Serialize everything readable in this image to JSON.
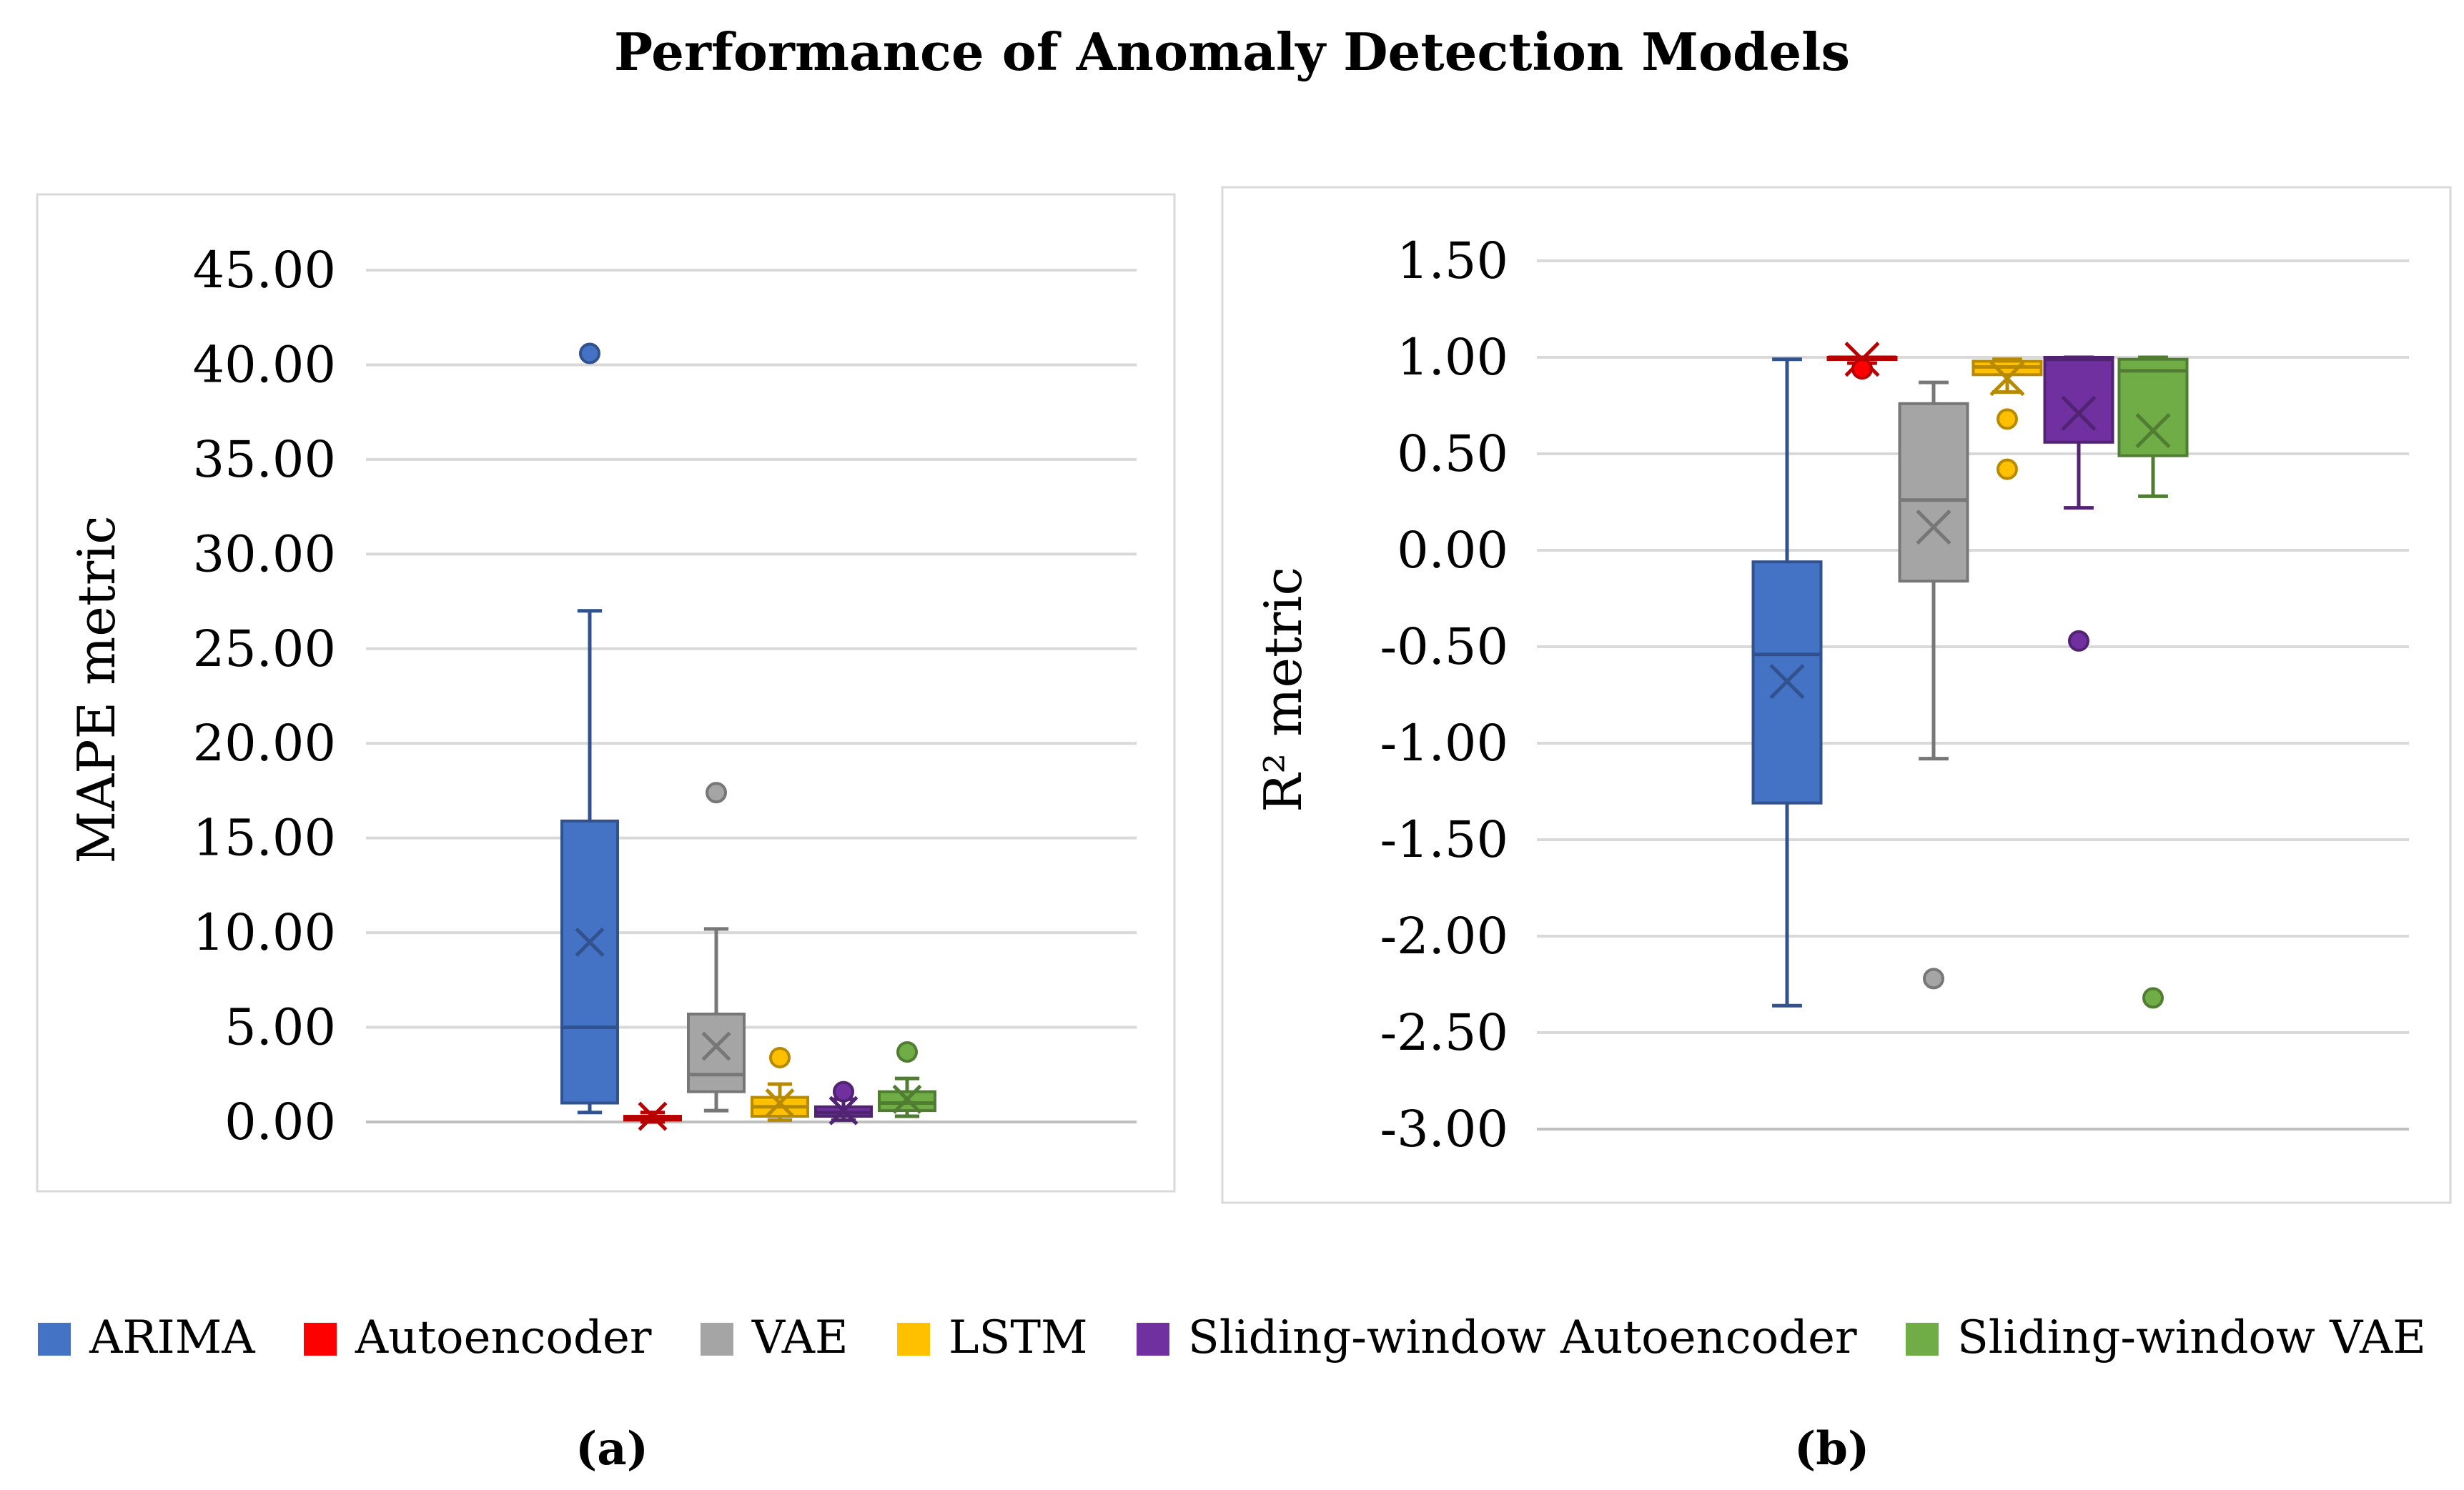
{
  "title": "Performance of Anomaly Detection Models",
  "colors": {
    "ARIMA": "#4472c4",
    "Autoencoder": "#ff0000",
    "VAE": "#a5a5a5",
    "LSTM": "#ffc000",
    "Sliding-window Autoencoder": "#7030a0",
    "Sliding-window VAE": "#70ad47"
  },
  "legend": [
    {
      "name": "ARIMA",
      "color": "#4472c4"
    },
    {
      "name": "Autoencoder",
      "color": "#ff0000"
    },
    {
      "name": "VAE",
      "color": "#a5a5a5"
    },
    {
      "name": "LSTM",
      "color": "#ffc000"
    },
    {
      "name": "Sliding-window Autoencoder",
      "color": "#7030a0"
    },
    {
      "name": "Sliding-window VAE",
      "color": "#70ad47"
    }
  ],
  "sublabels": {
    "a": "(a)",
    "b": "(b)"
  },
  "chart_data": [
    {
      "type": "box",
      "panel": "(a)",
      "title": "",
      "ylabel": "MAPE  metric",
      "ylim": [
        0,
        45
      ],
      "yticks": [
        "0.00",
        "5.00",
        "10.00",
        "15.00",
        "20.00",
        "25.00",
        "30.00",
        "35.00",
        "40.00",
        "45.00"
      ],
      "grid": true,
      "series": [
        {
          "name": "ARIMA",
          "min": 0.5,
          "q1": 1.0,
          "median": 5.0,
          "q3": 15.9,
          "max": 27.0,
          "mean": 9.5,
          "outliers": [
            40.6
          ]
        },
        {
          "name": "Autoencoder",
          "min": 0.0,
          "q1": 0.1,
          "median": 0.2,
          "q3": 0.3,
          "max": 0.5,
          "mean": 0.3,
          "outliers": []
        },
        {
          "name": "VAE",
          "min": 0.6,
          "q1": 1.6,
          "median": 2.5,
          "q3": 5.7,
          "max": 10.2,
          "mean": 4.0,
          "outliers": [
            17.4
          ]
        },
        {
          "name": "LSTM",
          "min": 0.1,
          "q1": 0.3,
          "median": 0.8,
          "q3": 1.3,
          "max": 2.0,
          "mean": 1.0,
          "outliers": [
            3.4
          ]
        },
        {
          "name": "Sliding-window Autoencoder",
          "min": 0.1,
          "q1": 0.3,
          "median": 0.5,
          "q3": 0.8,
          "max": 1.2,
          "mean": 0.6,
          "outliers": [
            1.6
          ]
        },
        {
          "name": "Sliding-window VAE",
          "min": 0.3,
          "q1": 0.6,
          "median": 1.0,
          "q3": 1.6,
          "max": 2.3,
          "mean": 1.2,
          "outliers": [
            3.7
          ]
        }
      ]
    },
    {
      "type": "box",
      "panel": "(b)",
      "title": "",
      "ylabel": "R² metric",
      "ylim": [
        -3.0,
        1.5
      ],
      "yticks": [
        "-3.00",
        "-2.50",
        "-2.00",
        "-1.50",
        "-1.00",
        "-0.50",
        "0.00",
        "0.50",
        "1.00",
        "1.50"
      ],
      "grid": true,
      "series": [
        {
          "name": "ARIMA",
          "min": -2.36,
          "q1": -1.31,
          "median": -0.54,
          "q3": -0.06,
          "max": 0.99,
          "mean": -0.68,
          "outliers": []
        },
        {
          "name": "Autoencoder",
          "min": 0.97,
          "q1": 0.99,
          "median": 1.0,
          "q3": 1.0,
          "max": 1.0,
          "mean": 0.99,
          "outliers": [
            0.94
          ]
        },
        {
          "name": "VAE",
          "min": -1.08,
          "q1": -0.16,
          "median": 0.26,
          "q3": 0.76,
          "max": 0.87,
          "mean": 0.12,
          "outliers": [
            -2.22
          ]
        },
        {
          "name": "LSTM",
          "min": 0.82,
          "q1": 0.91,
          "median": 0.95,
          "q3": 0.98,
          "max": 0.99,
          "mean": 0.89,
          "outliers": [
            0.68,
            0.42
          ]
        },
        {
          "name": "Sliding-window Autoencoder",
          "min": 0.22,
          "q1": 0.56,
          "median": 0.99,
          "q3": 1.0,
          "max": 1.0,
          "mean": 0.71,
          "outliers": [
            -0.47
          ]
        },
        {
          "name": "Sliding-window VAE",
          "min": 0.28,
          "q1": 0.49,
          "median": 0.93,
          "q3": 0.99,
          "max": 1.0,
          "mean": 0.62,
          "outliers": [
            -2.32
          ]
        }
      ]
    }
  ]
}
